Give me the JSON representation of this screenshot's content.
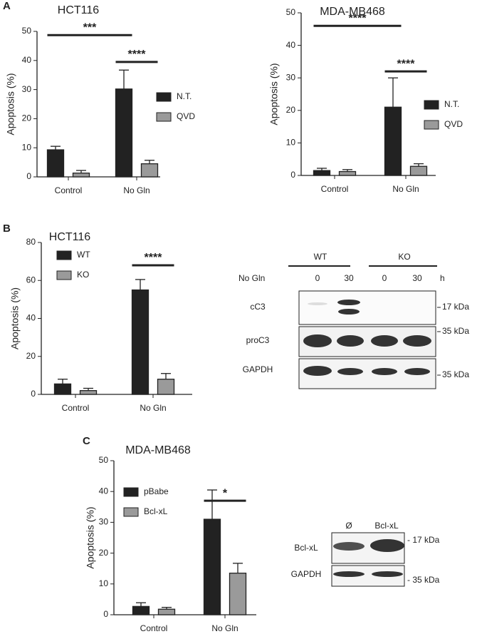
{
  "panels": [
    "A",
    "B",
    "C"
  ],
  "chart_data": [
    {
      "type": "bar",
      "title": "HCT116",
      "y_label": "Apoptosis (%)",
      "categories": [
        "Control",
        "No Gln"
      ],
      "series": [
        {
          "name": "N.T.",
          "color": "#222222",
          "values": [
            9.3,
            30.2
          ],
          "errors": [
            1.2,
            6.5
          ]
        },
        {
          "name": "QVD",
          "color": "#9a9a9a",
          "values": [
            1.3,
            4.5
          ],
          "errors": [
            0.9,
            1.2
          ]
        }
      ],
      "ylim": [
        0,
        50
      ],
      "yticks": [
        0,
        10,
        20,
        30,
        40,
        50
      ],
      "legend": "right",
      "annotations": [
        {
          "text": "***",
          "y": 48.7,
          "from": [
            0,
            0
          ],
          "to": [
            1,
            0
          ]
        },
        {
          "text": "****",
          "y": 39.5,
          "from": [
            1,
            0
          ],
          "to": [
            1,
            1
          ]
        }
      ]
    },
    {
      "type": "bar",
      "title": "MDA-MB468",
      "y_label": "Apoptosis (%)",
      "categories": [
        "Control",
        "No Gln"
      ],
      "series": [
        {
          "name": "N.T.",
          "color": "#222222",
          "values": [
            1.5,
            21
          ],
          "errors": [
            0.7,
            9
          ]
        },
        {
          "name": "QVD",
          "color": "#9a9a9a",
          "values": [
            1.2,
            2.8
          ],
          "errors": [
            0.6,
            0.8
          ]
        }
      ],
      "ylim": [
        0,
        50
      ],
      "yticks": [
        0,
        10,
        20,
        30,
        40,
        50
      ],
      "legend": "right",
      "annotations": [
        {
          "text": "****",
          "y": 46,
          "from": [
            0,
            0
          ],
          "to": [
            1,
            0
          ]
        },
        {
          "text": "****",
          "y": 32,
          "from": [
            1,
            0
          ],
          "to": [
            1,
            1
          ]
        }
      ]
    },
    {
      "type": "bar",
      "title": "HCT116",
      "y_label": "Apoptosis (%)",
      "categories": [
        "Control",
        "No Gln"
      ],
      "series": [
        {
          "name": "WT",
          "color": "#222222",
          "values": [
            5.5,
            55
          ],
          "errors": [
            2.5,
            5.5
          ]
        },
        {
          "name": "KO",
          "color": "#9a9a9a",
          "values": [
            2,
            8
          ],
          "errors": [
            1.2,
            3
          ]
        }
      ],
      "ylim": [
        0,
        80
      ],
      "yticks": [
        0,
        20,
        40,
        60,
        80
      ],
      "legend": "upper left",
      "annotations": [
        {
          "text": "****",
          "y": 68,
          "from": [
            1,
            0
          ],
          "to": [
            1,
            1
          ]
        }
      ]
    },
    {
      "type": "bar",
      "title": "MDA-MB468",
      "y_label": "Apoptosis (%)",
      "categories": [
        "Control",
        "No Gln"
      ],
      "series": [
        {
          "name": "pBabe",
          "color": "#222222",
          "values": [
            2.7,
            31
          ],
          "errors": [
            1.2,
            9.5
          ]
        },
        {
          "name": "Bcl-xL",
          "color": "#9a9a9a",
          "values": [
            1.8,
            13.5
          ],
          "errors": [
            0.6,
            3.2
          ]
        }
      ],
      "ylim": [
        0,
        50
      ],
      "yticks": [
        0,
        10,
        20,
        30,
        40,
        50
      ],
      "legend": "upper left",
      "annotations": [
        {
          "text": "*",
          "y": 37,
          "from": [
            1,
            0
          ],
          "to": [
            1,
            1
          ]
        }
      ]
    }
  ],
  "blots": [
    {
      "groups": [
        "WT",
        "KO"
      ],
      "condition": "No Gln",
      "lanes": [
        "0",
        "30",
        "0",
        "30"
      ],
      "unit": "h",
      "rows": [
        {
          "label": "cC3",
          "marker": "17 kDa"
        },
        {
          "label": "proC3",
          "marker": "35 kDa"
        },
        {
          "label": "GAPDH",
          "marker": "35 kDa"
        }
      ]
    },
    {
      "lanes": [
        "Ø",
        "Bcl-xL"
      ],
      "rows": [
        {
          "label": "Bcl-xL",
          "marker": "- 17 kDa"
        },
        {
          "label": "GAPDH",
          "marker": "- 35 kDa"
        }
      ]
    }
  ]
}
